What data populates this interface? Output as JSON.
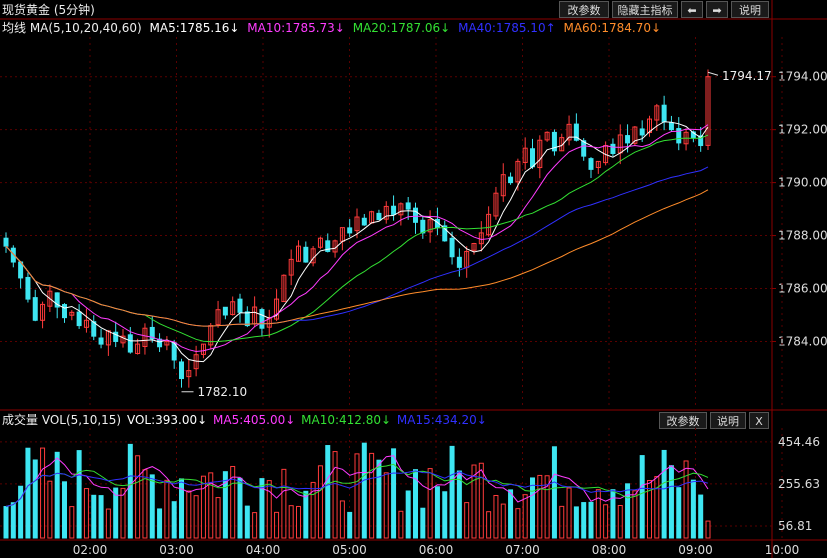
{
  "title": "现货黄金 (5分钟)",
  "toolbar": {
    "params_label": "改参数",
    "hide_indicator_label": "隐藏主指标",
    "left_arrow": "⬅",
    "right_arrow": "➡",
    "help_label": "说明"
  },
  "main_legend": {
    "prefix": "均线 MA(5,10,20,40,60)",
    "items": [
      {
        "label": "MA5:1785.16↓",
        "color": "#ffffff"
      },
      {
        "label": "MA10:1785.73↓",
        "color": "#ff3cff"
      },
      {
        "label": "MA20:1787.06↓",
        "color": "#33e033"
      },
      {
        "label": "MA40:1785.10↑",
        "color": "#3030ff"
      },
      {
        "label": "MA60:1784.70↓",
        "color": "#ff8c2a"
      }
    ]
  },
  "vol_panel": {
    "title": "成交量 VOL(5,10,15)",
    "items": [
      {
        "label": "VOL:393.00↓",
        "color": "#ffffff"
      },
      {
        "label": "MA5:405.00↓",
        "color": "#ff3cff"
      },
      {
        "label": "MA10:412.80↓",
        "color": "#33e033"
      },
      {
        "label": "MA15:434.20↓",
        "color": "#3030ff"
      }
    ],
    "params_label": "改参数",
    "help_label": "说明",
    "close_label": "X"
  },
  "colors": {
    "up": "#ff3b3b",
    "down": "#3ee6f2",
    "axis": "#8b0000",
    "grid": "#5a0000"
  },
  "chart_data": {
    "type": "candlestick",
    "price_axis": {
      "ticks": [
        "1794.00",
        "1792.00",
        "1790.00",
        "1788.00",
        "1786.00",
        "1784.00"
      ],
      "ylim": [
        1781.6,
        1795.5
      ]
    },
    "volume_axis": {
      "ticks": [
        "454.46",
        "255.63",
        "56.81"
      ],
      "ylim": [
        0,
        520
      ]
    },
    "time_ticks": [
      "02:00",
      "03:00",
      "04:00",
      "05:00",
      "06:00",
      "07:00",
      "08:00",
      "09:00",
      "10:00"
    ],
    "annotations": {
      "high_label": "1794.17",
      "low_label": "1782.10"
    },
    "closes": [
      1787.6,
      1787.0,
      1786.4,
      1785.6,
      1784.8,
      1785.4,
      1785.9,
      1785.3,
      1784.9,
      1785.1,
      1784.6,
      1784.8,
      1784.2,
      1783.9,
      1784.4,
      1784.0,
      1784.2,
      1783.6,
      1783.9,
      1784.5,
      1784.1,
      1783.8,
      1784.0,
      1783.3,
      1782.6,
      1782.9,
      1783.5,
      1783.9,
      1784.6,
      1785.2,
      1785.0,
      1785.5,
      1785.1,
      1784.6,
      1785.3,
      1784.5,
      1784.9,
      1785.6,
      1786.5,
      1787.1,
      1787.6,
      1787.0,
      1787.5,
      1787.9,
      1787.4,
      1787.8,
      1788.3,
      1788.1,
      1788.7,
      1788.4,
      1788.9,
      1788.6,
      1789.1,
      1788.8,
      1789.2,
      1789.0,
      1788.5,
      1788.1,
      1788.6,
      1788.3,
      1787.8,
      1787.2,
      1786.8,
      1787.4,
      1787.7,
      1788.1,
      1788.8,
      1789.6,
      1790.3,
      1790.0,
      1790.8,
      1791.3,
      1790.6,
      1791.6,
      1791.9,
      1791.2,
      1791.7,
      1792.2,
      1791.6,
      1791.0,
      1790.5,
      1790.8,
      1791.4,
      1791.1,
      1791.8,
      1791.5,
      1792.1,
      1791.8,
      1792.4,
      1792.9,
      1792.3,
      1792.0,
      1791.5,
      1791.9,
      1791.7,
      1791.4,
      1794.0
    ]
  }
}
